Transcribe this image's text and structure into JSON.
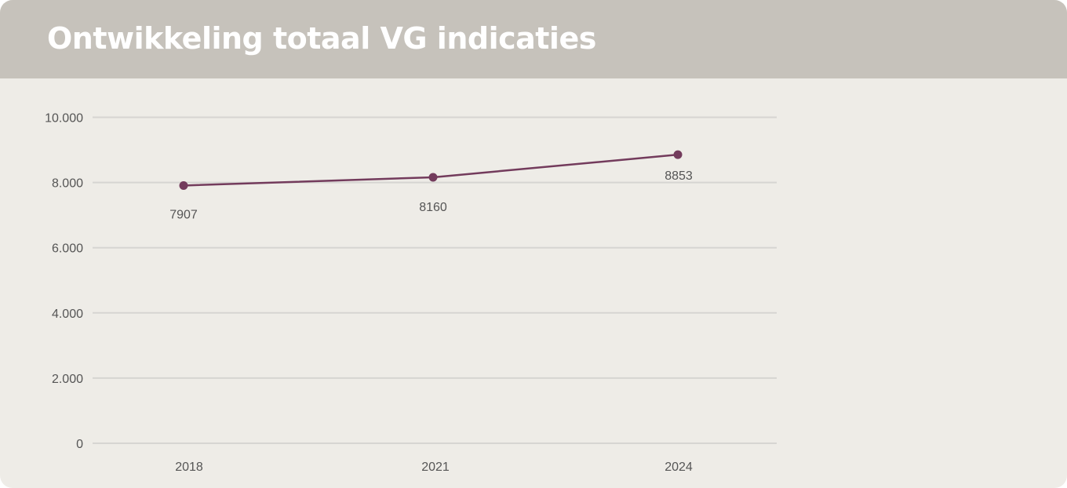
{
  "header": {
    "title": "Ontwikkeling totaal VG indicaties"
  },
  "colors": {
    "header_bg": "#c6c2bb",
    "panel_bg": "#eeece7",
    "series_line": "#733b5c",
    "gridline": "#d6d5d2",
    "tick_text": "#555555"
  },
  "chart_data": {
    "type": "line",
    "title": "Ontwikkeling totaal VG indicaties",
    "x": [
      "2018",
      "2021",
      "2024"
    ],
    "series": [
      {
        "values": [
          7907,
          8160,
          8853
        ],
        "data_labels": [
          "7907",
          "8160",
          "8853"
        ],
        "marker": "circle"
      }
    ],
    "ylim": [
      0,
      10000
    ],
    "y_ticks": [
      0,
      2000,
      4000,
      6000,
      8000,
      10000
    ],
    "y_tick_labels": [
      "0",
      "2.000",
      "4.000",
      "6.000",
      "8.000",
      "10.000"
    ],
    "grid": true,
    "legend": "none",
    "xlabel": "",
    "ylabel": ""
  }
}
